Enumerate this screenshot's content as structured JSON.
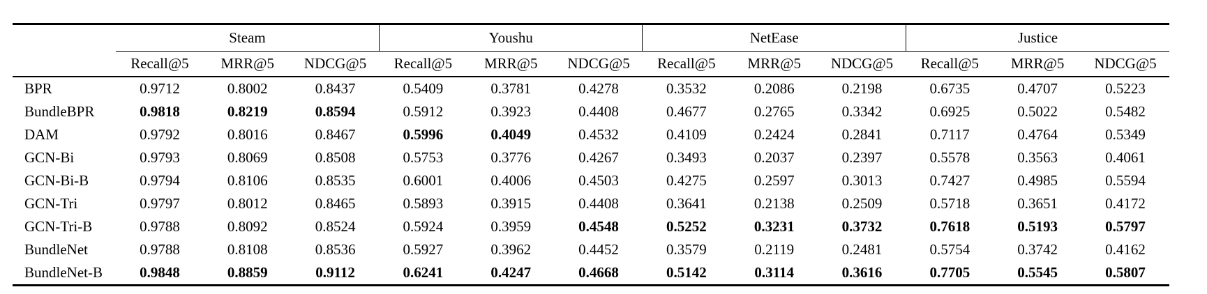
{
  "table": {
    "groups": [
      {
        "label": "Steam"
      },
      {
        "label": "Youshu"
      },
      {
        "label": "NetEase"
      },
      {
        "label": "Justice"
      }
    ],
    "metrics": [
      "Recall@5",
      "MRR@5",
      "NDCG@5"
    ],
    "rows": [
      {
        "method": "BPR",
        "values": [
          "0.9712",
          "0.8002",
          "0.8437",
          "0.5409",
          "0.3781",
          "0.4278",
          "0.3532",
          "0.2086",
          "0.2198",
          "0.6735",
          "0.4707",
          "0.5223"
        ],
        "bold": []
      },
      {
        "method": "BundleBPR",
        "values": [
          "0.9818",
          "0.8219",
          "0.8594",
          "0.5912",
          "0.3923",
          "0.4408",
          "0.4677",
          "0.2765",
          "0.3342",
          "0.6925",
          "0.5022",
          "0.5482"
        ],
        "bold": [
          0,
          1,
          2
        ]
      },
      {
        "method": "DAM",
        "values": [
          "0.9792",
          "0.8016",
          "0.8467",
          "0.5996",
          "0.4049",
          "0.4532",
          "0.4109",
          "0.2424",
          "0.2841",
          "0.7117",
          "0.4764",
          "0.5349"
        ],
        "bold": [
          3,
          4
        ]
      },
      {
        "method": "GCN-Bi",
        "values": [
          "0.9793",
          "0.8069",
          "0.8508",
          "0.5753",
          "0.3776",
          "0.4267",
          "0.3493",
          "0.2037",
          "0.2397",
          "0.5578",
          "0.3563",
          "0.4061"
        ],
        "bold": []
      },
      {
        "method": "GCN-Bi-B",
        "values": [
          "0.9794",
          "0.8106",
          "0.8535",
          "0.6001",
          "0.4006",
          "0.4503",
          "0.4275",
          "0.2597",
          "0.3013",
          "0.7427",
          "0.4985",
          "0.5594"
        ],
        "bold": []
      },
      {
        "method": "GCN-Tri",
        "values": [
          "0.9797",
          "0.8012",
          "0.8465",
          "0.5893",
          "0.3915",
          "0.4408",
          "0.3641",
          "0.2138",
          "0.2509",
          "0.5718",
          "0.3651",
          "0.4172"
        ],
        "bold": []
      },
      {
        "method": "GCN-Tri-B",
        "values": [
          "0.9788",
          "0.8092",
          "0.8524",
          "0.5924",
          "0.3959",
          "0.4548",
          "0.5252",
          "0.3231",
          "0.3732",
          "0.7618",
          "0.5193",
          "0.5797"
        ],
        "bold": [
          5,
          6,
          7,
          8,
          9,
          10,
          11
        ]
      },
      {
        "method": "BundleNet",
        "values": [
          "0.9788",
          "0.8108",
          "0.8536",
          "0.5927",
          "0.3962",
          "0.4452",
          "0.3579",
          "0.2119",
          "0.2481",
          "0.5754",
          "0.3742",
          "0.4162"
        ],
        "bold": []
      },
      {
        "method": "BundleNet-B",
        "values": [
          "0.9848",
          "0.8859",
          "0.9112",
          "0.6241",
          "0.4247",
          "0.4668",
          "0.5142",
          "0.3114",
          "0.3616",
          "0.7705",
          "0.5545",
          "0.5807"
        ],
        "bold": [
          0,
          1,
          2,
          3,
          4,
          5,
          6,
          7,
          8,
          9,
          10,
          11
        ]
      }
    ]
  }
}
